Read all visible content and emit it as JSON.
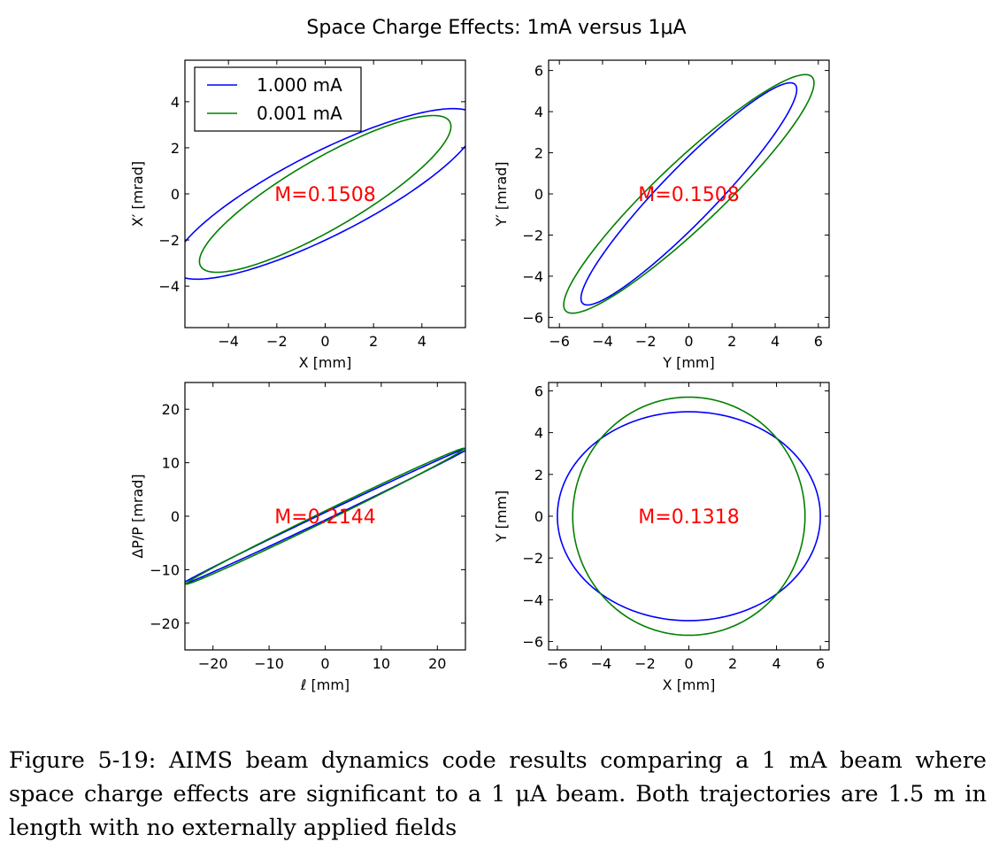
{
  "title": "Space Charge Effects: 1mA versus 1μA",
  "caption": "Figure 5-19: AIMS beam dynamics code results comparing a 1 mA beam where space charge effects are significant to a 1 μA beam. Both trajectories are 1.5 m in length with no externally applied fields",
  "legend": {
    "position": "upper-left",
    "entries": [
      {
        "label": "1.000 mA",
        "color": "#0000ff"
      },
      {
        "label": "0.001 mA",
        "color": "#008000"
      }
    ]
  },
  "chart_data": [
    {
      "type": "line",
      "xlabel": "X [mm]",
      "ylabel": "X′ [mrad]",
      "xlim": [
        -5.8,
        5.8
      ],
      "ylim": [
        -5.8,
        5.8
      ],
      "xticks": [
        -4,
        -2,
        0,
        2,
        4
      ],
      "yticks": [
        -4,
        -2,
        0,
        2,
        4
      ],
      "annotation": "M=0.1508",
      "series": [
        {
          "name": "1.000 mA",
          "color": "#0000ff",
          "ellipse": {
            "semi_axis_x": 6.3,
            "semi_axis_y": 3.7,
            "correlation": 0.84
          }
        },
        {
          "name": "0.001 mA",
          "color": "#008000",
          "ellipse": {
            "semi_axis_x": 5.2,
            "semi_axis_y": 3.4,
            "correlation": 0.86
          }
        }
      ]
    },
    {
      "type": "line",
      "xlabel": "Y [mm]",
      "ylabel": "Y′ [mrad]",
      "xlim": [
        -6.5,
        6.5
      ],
      "ylim": [
        -6.5,
        6.5
      ],
      "xticks": [
        -6,
        -4,
        -2,
        0,
        2,
        4,
        6
      ],
      "yticks": [
        -6,
        -4,
        -2,
        0,
        2,
        4,
        6
      ],
      "annotation": "M=0.1508",
      "series": [
        {
          "name": "1.000 mA",
          "color": "#0000ff",
          "ellipse": {
            "semi_axis_x": 5.0,
            "semi_axis_y": 5.4,
            "correlation": 0.94
          }
        },
        {
          "name": "0.001 mA",
          "color": "#008000",
          "ellipse": {
            "semi_axis_x": 5.8,
            "semi_axis_y": 5.8,
            "correlation": 0.93
          }
        }
      ]
    },
    {
      "type": "line",
      "xlabel": "ℓ [mm]",
      "ylabel": "ΔP/P [mrad]",
      "xlim": [
        -25,
        25
      ],
      "ylim": [
        -25,
        25
      ],
      "xticks": [
        -20,
        -10,
        0,
        10,
        20
      ],
      "yticks": [
        -20,
        -10,
        0,
        10,
        20
      ],
      "annotation": "M=0.2144",
      "series": [
        {
          "name": "1.000 mA",
          "color": "#0000ff",
          "ellipse": {
            "semi_axis_x": 26.0,
            "semi_axis_y": 13.0,
            "correlation": 0.9985
          }
        },
        {
          "name": "0.001 mA",
          "color": "#008000",
          "ellipse": {
            "semi_axis_x": 24.8,
            "semi_axis_y": 12.7,
            "correlation": 0.997
          }
        }
      ]
    },
    {
      "type": "line",
      "xlabel": "X [mm]",
      "ylabel": "Y [mm]",
      "xlim": [
        -6.4,
        6.4
      ],
      "ylim": [
        -6.4,
        6.4
      ],
      "xticks": [
        -6,
        -4,
        -2,
        0,
        2,
        4,
        6
      ],
      "yticks": [
        -6,
        -4,
        -2,
        0,
        2,
        4,
        6
      ],
      "annotation": "M=0.1318",
      "series": [
        {
          "name": "1.000 mA",
          "color": "#0000ff",
          "ellipse": {
            "semi_axis_x": 6.0,
            "semi_axis_y": 5.0,
            "correlation": 0
          }
        },
        {
          "name": "0.001 mA",
          "color": "#008000",
          "ellipse": {
            "semi_axis_x": 5.3,
            "semi_axis_y": 5.7,
            "correlation": 0
          }
        }
      ]
    }
  ]
}
